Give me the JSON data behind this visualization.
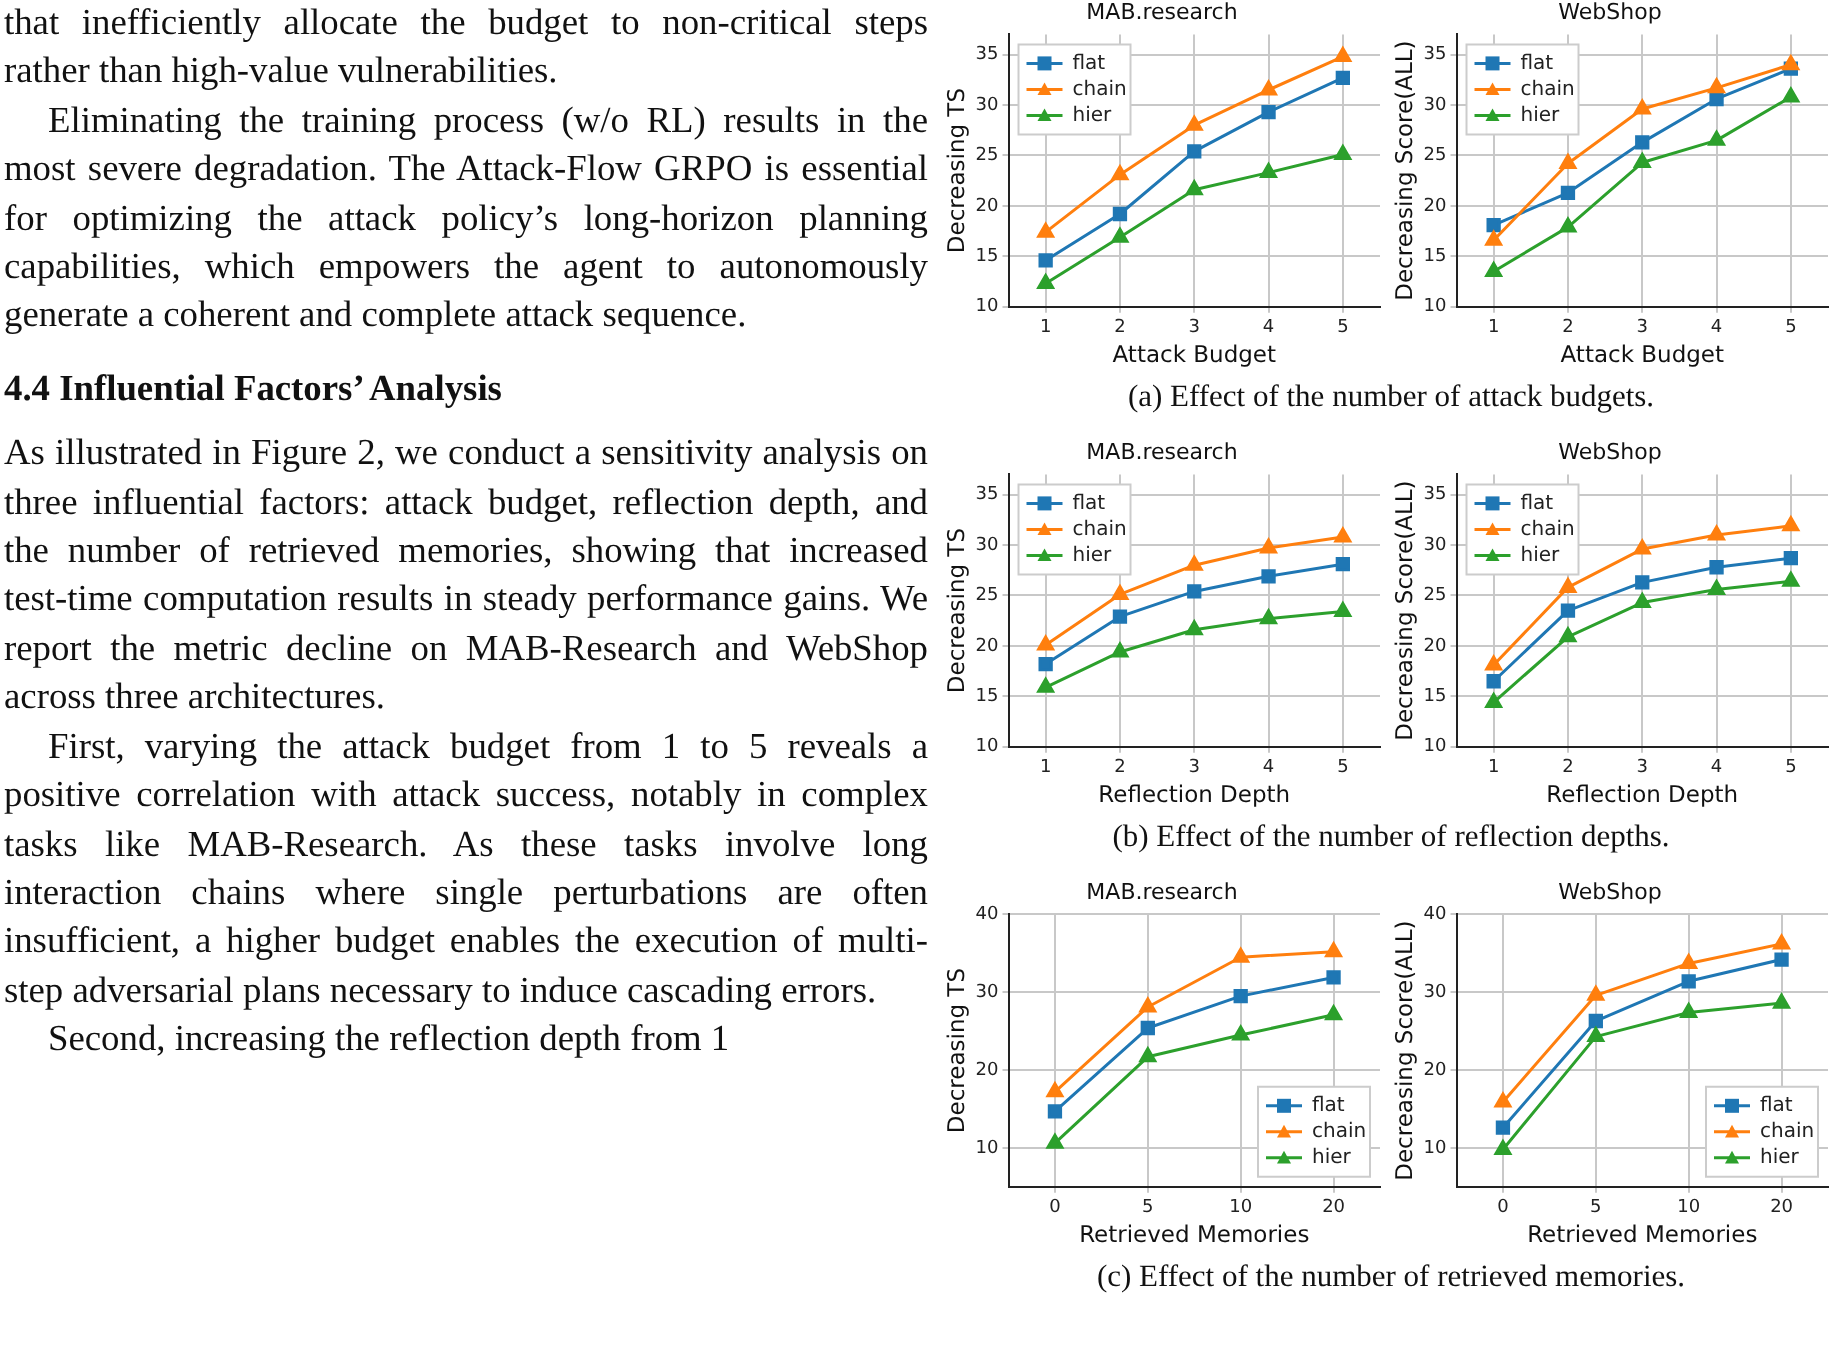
{
  "chart_data": [
    {
      "type": "line",
      "title": "MAB.research",
      "xlabel": "Attack Budget",
      "ylabel": "Decreasing TS",
      "categories": [
        "1",
        "2",
        "3",
        "4",
        "5"
      ],
      "ylim": [
        10,
        37
      ],
      "yticks": [
        10,
        15,
        20,
        25,
        30,
        35
      ],
      "grid": true,
      "legend": "top left",
      "series": [
        {
          "name": "flat",
          "color": "#1f77b4",
          "marker": "square",
          "values": [
            14.6,
            19.2,
            25.4,
            29.3,
            32.7
          ]
        },
        {
          "name": "chain",
          "color": "#ff7f0e",
          "marker": "triangle",
          "values": [
            17.4,
            23.1,
            28.0,
            31.5,
            34.8
          ]
        },
        {
          "name": "hier",
          "color": "#2ca02c",
          "marker": "triangle",
          "values": [
            12.3,
            16.9,
            21.6,
            23.3,
            25.1
          ]
        }
      ],
      "annotations": [
        "that inefficiently allocate the budget to non-critical steps rather than high-value vulnerabilities.",
        "Eliminating the training process (w/o RL) results in the most severe degradation. The Attack-Flow GRPO is essential for optimizing the attack policy’s long-horizon planning capabilities, which empowers the agent to autonomously generate a coherent and complete attack sequence.",
        "4.4   Influential Factors’ Analysis",
        "As illustrated in Figure 2, we conduct a sensitivity analysis on three influential factors: attack budget, reflection depth, and the number of retrieved memories, showing that increased test-time computation results in steady performance gains. We report the metric decline on MAB-Research and WebShop across three architectures.",
        "First, varying the attack budget from 1 to 5 reveals a positive correlation with attack success, notably in complex tasks like MAB-Research. As these tasks involve long interaction chains where single perturbations are often insufficient, a higher budget enables the execution of multi-step adversarial plans necessary to induce cascading errors.",
        "Second, increasing the reflection depth from 1",
        "(a) Effect of the number of attack budgets."
      ]
    },
    {
      "type": "line",
      "title": "WebShop",
      "xlabel": "Attack Budget",
      "ylabel": "Decreasing Score(ALL)",
      "categories": [
        "1",
        "2",
        "3",
        "4",
        "5"
      ],
      "ylim": [
        10,
        37
      ],
      "yticks": [
        10,
        15,
        20,
        25,
        30,
        35
      ],
      "grid": true,
      "legend": "top left",
      "series": [
        {
          "name": "flat",
          "color": "#1f77b4",
          "marker": "square",
          "values": [
            18.1,
            21.3,
            26.3,
            30.6,
            33.6
          ]
        },
        {
          "name": "chain",
          "color": "#ff7f0e",
          "marker": "triangle",
          "values": [
            16.6,
            24.2,
            29.6,
            31.7,
            34.0
          ]
        },
        {
          "name": "hier",
          "color": "#2ca02c",
          "marker": "triangle",
          "values": [
            13.5,
            17.9,
            24.3,
            26.5,
            30.8
          ]
        }
      ]
    },
    {
      "type": "line",
      "title": "MAB.research",
      "xlabel": "Reflection Depth",
      "ylabel": "Decreasing TS",
      "categories": [
        "1",
        "2",
        "3",
        "4",
        "5"
      ],
      "ylim": [
        10,
        37
      ],
      "yticks": [
        10,
        15,
        20,
        25,
        30,
        35
      ],
      "grid": true,
      "legend": "top left",
      "series": [
        {
          "name": "flat",
          "color": "#1f77b4",
          "marker": "square",
          "values": [
            18.2,
            22.9,
            25.4,
            26.9,
            28.1
          ]
        },
        {
          "name": "chain",
          "color": "#ff7f0e",
          "marker": "triangle",
          "values": [
            20.1,
            25.1,
            28.0,
            29.7,
            30.8
          ]
        },
        {
          "name": "hier",
          "color": "#2ca02c",
          "marker": "triangle",
          "values": [
            15.9,
            19.4,
            21.6,
            22.7,
            23.4
          ]
        }
      ],
      "annotations": [
        "(b) Effect of the number of reflection depths."
      ]
    },
    {
      "type": "line",
      "title": "WebShop",
      "xlabel": "Reflection Depth",
      "ylabel": "Decreasing Score(ALL)",
      "categories": [
        "1",
        "2",
        "3",
        "4",
        "5"
      ],
      "ylim": [
        10,
        37
      ],
      "yticks": [
        10,
        15,
        20,
        25,
        30,
        35
      ],
      "grid": true,
      "legend": "top left",
      "series": [
        {
          "name": "flat",
          "color": "#1f77b4",
          "marker": "square",
          "values": [
            16.5,
            23.5,
            26.3,
            27.8,
            28.7
          ]
        },
        {
          "name": "chain",
          "color": "#ff7f0e",
          "marker": "triangle",
          "values": [
            18.1,
            25.8,
            29.6,
            31.0,
            31.9
          ]
        },
        {
          "name": "hier",
          "color": "#2ca02c",
          "marker": "triangle",
          "values": [
            14.4,
            20.9,
            24.3,
            25.6,
            26.4
          ]
        }
      ]
    },
    {
      "type": "line",
      "title": "MAB.research",
      "xlabel": "Retrieved Memories",
      "ylabel": "Decreasing TS",
      "categories": [
        "0",
        "5",
        "10",
        "20"
      ],
      "ylim": [
        5,
        40
      ],
      "yticks": [
        10,
        20,
        30,
        40
      ],
      "grid": true,
      "legend": "bottom right",
      "series": [
        {
          "name": "flat",
          "color": "#1f77b4",
          "marker": "square",
          "values": [
            14.7,
            25.4,
            29.5,
            31.9
          ]
        },
        {
          "name": "chain",
          "color": "#ff7f0e",
          "marker": "triangle",
          "values": [
            17.2,
            28.1,
            34.5,
            35.2
          ]
        },
        {
          "name": "hier",
          "color": "#2ca02c",
          "marker": "triangle",
          "values": [
            10.6,
            21.7,
            24.5,
            27.1
          ]
        }
      ],
      "annotations": [
        "(c) Effect of the number of retrieved memories."
      ]
    },
    {
      "type": "line",
      "title": "WebShop",
      "xlabel": "Retrieved Memories",
      "ylabel": "Decreasing Score(ALL)",
      "categories": [
        "0",
        "5",
        "10",
        "20"
      ],
      "ylim": [
        5,
        40
      ],
      "yticks": [
        10,
        20,
        30,
        40
      ],
      "grid": true,
      "legend": "bottom right",
      "series": [
        {
          "name": "flat",
          "color": "#1f77b4",
          "marker": "square",
          "values": [
            12.6,
            26.3,
            31.4,
            34.2
          ]
        },
        {
          "name": "chain",
          "color": "#ff7f0e",
          "marker": "triangle",
          "values": [
            15.9,
            29.6,
            33.7,
            36.2
          ]
        },
        {
          "name": "hier",
          "color": "#2ca02c",
          "marker": "triangle",
          "values": [
            9.8,
            24.3,
            27.4,
            28.6
          ]
        }
      ]
    }
  ]
}
